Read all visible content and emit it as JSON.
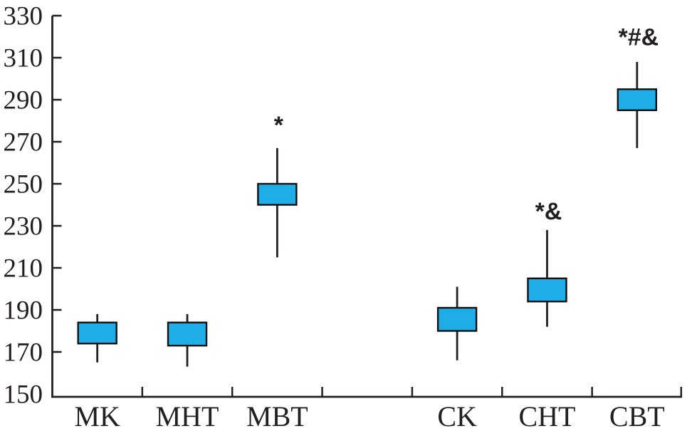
{
  "chart_data": {
    "type": "box",
    "title": "",
    "xlabel": "",
    "ylabel": "",
    "ylim": [
      150,
      330
    ],
    "yticks": [
      150,
      170,
      190,
      210,
      230,
      250,
      270,
      290,
      310,
      330
    ],
    "grid": false,
    "legend": null,
    "num_slots": 7,
    "categories": [
      "MK",
      "MHT",
      "MBT",
      "",
      "CK",
      "CHT",
      "CBT"
    ],
    "boxes": [
      {
        "label": "MK",
        "slot": 0,
        "whisker_low": 165,
        "q1": 174,
        "q3": 184,
        "whisker_high": 188,
        "annotation": "",
        "annotation_value": null
      },
      {
        "label": "MHT",
        "slot": 1,
        "whisker_low": 163,
        "q1": 173,
        "q3": 184,
        "whisker_high": 188,
        "annotation": "",
        "annotation_value": null
      },
      {
        "label": "MBT",
        "slot": 2,
        "whisker_low": 215,
        "q1": 240,
        "q3": 250,
        "whisker_high": 267,
        "annotation": "*",
        "annotation_value": 274
      },
      {
        "label": "CK",
        "slot": 4,
        "whisker_low": 166,
        "q1": 180,
        "q3": 191,
        "whisker_high": 201,
        "annotation": "",
        "annotation_value": null
      },
      {
        "label": "CHT",
        "slot": 5,
        "whisker_low": 182,
        "q1": 194,
        "q3": 205,
        "whisker_high": 228,
        "annotation": "*&",
        "annotation_value": 233
      },
      {
        "label": "CBT",
        "slot": 6,
        "whisker_low": 267,
        "q1": 285,
        "q3": 295,
        "whisker_high": 308,
        "annotation": "*#&",
        "annotation_value": 316
      }
    ]
  },
  "colors": {
    "box_fill": "#1fade8",
    "box_border": "#111111",
    "axis": "#231f20",
    "text": "#231f20",
    "background": "#ffffff"
  }
}
